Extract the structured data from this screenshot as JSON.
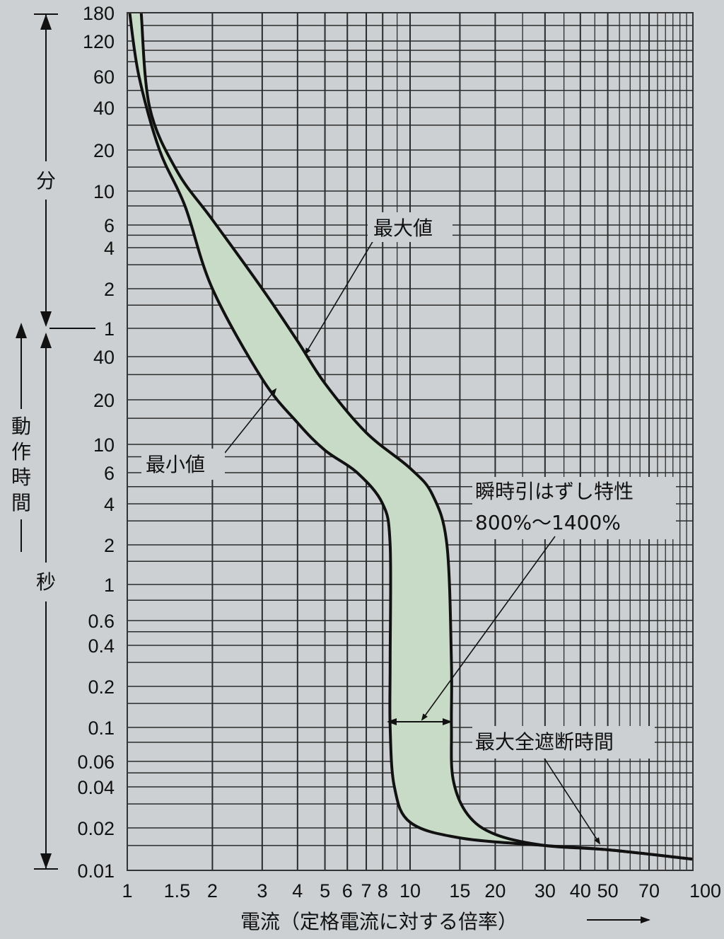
{
  "chart_data": {
    "type": "line",
    "xlabel": "電流（定格電流に対する倍率）",
    "x_scale": "log",
    "xlim": [
      1,
      100
    ],
    "x_ticks": [
      "1",
      "1.5",
      "2",
      "3",
      "4",
      "5",
      "6",
      "7",
      "8",
      "10",
      "15",
      "20",
      "30",
      "40",
      "50",
      "70",
      "100"
    ],
    "y_scale": "log",
    "y_segments": [
      {
        "unit_label": "分",
        "ticks": [
          "180",
          "120",
          "60",
          "40",
          "20",
          "10",
          "6",
          "4",
          "2",
          "1"
        ]
      },
      {
        "unit_label": "秒",
        "ticks": [
          "40",
          "20",
          "10",
          "6",
          "4",
          "2",
          "1",
          "0.6",
          "0.4",
          "0.2",
          "0.1",
          "0.06",
          "0.04",
          "0.02",
          "0.01"
        ]
      }
    ],
    "ylabel": "動作時間",
    "grid": true,
    "series": [
      {
        "name": "最大値",
        "points": [
          [
            1.12,
            10800
          ],
          [
            1.2,
            2400
          ],
          [
            1.5,
            840
          ],
          [
            2,
            390
          ],
          [
            3,
            120
          ],
          [
            4,
            50
          ],
          [
            5,
            26
          ],
          [
            7,
            12
          ],
          [
            10,
            6.5
          ],
          [
            12,
            4.5
          ],
          [
            13.5,
            2
          ],
          [
            14,
            0.3
          ],
          [
            14,
            0.1
          ],
          [
            14.2,
            0.045
          ],
          [
            16,
            0.025
          ],
          [
            20,
            0.018
          ],
          [
            30,
            0.015
          ],
          [
            50,
            0.014
          ],
          [
            100,
            0.012
          ]
        ]
      },
      {
        "name": "最小値",
        "points": [
          [
            1.02,
            10800
          ],
          [
            1.1,
            3600
          ],
          [
            1.3,
            1200
          ],
          [
            1.6,
            480
          ],
          [
            2,
            120
          ],
          [
            3,
            28
          ],
          [
            4,
            14
          ],
          [
            5,
            9
          ],
          [
            6.5,
            6
          ],
          [
            8,
            4
          ],
          [
            8.5,
            2
          ],
          [
            8.5,
            0.3
          ],
          [
            8.5,
            0.1
          ],
          [
            8.8,
            0.04
          ],
          [
            10,
            0.022
          ],
          [
            15,
            0.017
          ],
          [
            30,
            0.015
          ],
          [
            50,
            0.014
          ],
          [
            100,
            0.012
          ]
        ]
      }
    ],
    "annotations": [
      {
        "text": "最大値"
      },
      {
        "text": "最小値"
      },
      {
        "text": "瞬時引はずし特性"
      },
      {
        "text": "800%～1400%"
      },
      {
        "text": "最大全遮断時間"
      }
    ],
    "shading": "#c8dbc6",
    "line_color": "#111111"
  }
}
